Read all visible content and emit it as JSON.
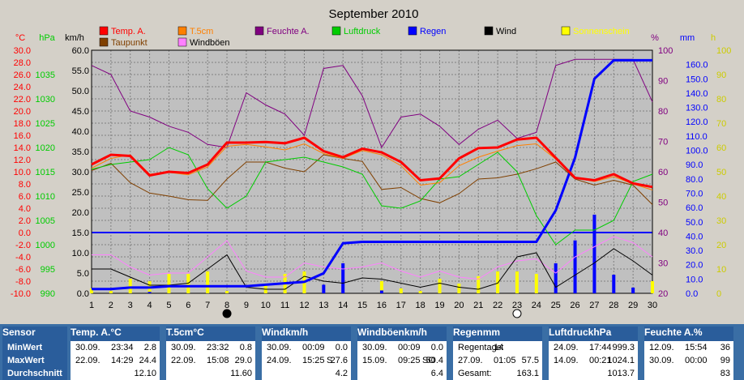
{
  "title": "September 2010",
  "axis_units": {
    "temp": "°C",
    "press": "hPa",
    "wind": "km/h",
    "hum": "%",
    "rain": "mm",
    "sun": "h"
  },
  "colors": {
    "temp": "#ff0000",
    "t5": "#ff8000",
    "hum": "#800080",
    "press": "#00cc00",
    "rain": "#0000ff",
    "wind": "#000000",
    "sun": "#ffff00",
    "dew": "#804000",
    "gust": "#ff80ff"
  },
  "chart_data": {
    "type": "line",
    "title": "September 2010",
    "x": [
      1,
      2,
      3,
      4,
      5,
      6,
      7,
      8,
      9,
      10,
      11,
      12,
      13,
      14,
      15,
      16,
      17,
      18,
      19,
      20,
      21,
      22,
      23,
      24,
      25,
      26,
      27,
      28,
      29,
      30
    ],
    "axes": {
      "temp": {
        "label": "°C",
        "ylim": [
          -10,
          30
        ],
        "ticks": [
          "30.0",
          "28.0",
          "26.0",
          "24.0",
          "22.0",
          "20.0",
          "18.0",
          "16.0",
          "14.0",
          "12.0",
          "10.0",
          "8.0",
          "6.0",
          "4.0",
          "2.0",
          "0.0",
          "-2.0",
          "-4.0",
          "-6.0",
          "-8.0",
          "-10.0"
        ]
      },
      "press": {
        "label": "hPa",
        "ylim": [
          990,
          1040
        ],
        "ticks": [
          "1035",
          "1030",
          "1025",
          "1020",
          "1015",
          "1010",
          "1005",
          "1000",
          "995",
          "990"
        ]
      },
      "wind": {
        "label": "km/h",
        "ylim": [
          0,
          60
        ],
        "ticks": [
          "60.0",
          "55.0",
          "50.0",
          "45.0",
          "40.0",
          "35.0",
          "30.0",
          "25.0",
          "20.0",
          "15.0",
          "10.0",
          "5.0",
          "0.0"
        ]
      },
      "hum": {
        "label": "%",
        "ylim": [
          20,
          100
        ],
        "ticks": [
          "100",
          "90",
          "80",
          "70",
          "60",
          "50",
          "40",
          "30",
          "20"
        ]
      },
      "rain": {
        "label": "mm",
        "ylim": [
          0,
          170
        ],
        "ticks": [
          "160.0",
          "150.0",
          "140.0",
          "130.0",
          "120.0",
          "110.0",
          "100.0",
          "90.0",
          "80.0",
          "70.0",
          "60.0",
          "50.0",
          "40.0",
          "30.0",
          "20.0",
          "10.0",
          "0.0"
        ]
      },
      "sun": {
        "label": "h",
        "ylim": [
          0,
          100
        ],
        "ticks": [
          "100",
          "90",
          "80",
          "70",
          "60",
          "50",
          "40",
          "30",
          "20",
          "10",
          "0"
        ]
      }
    },
    "legend": [
      {
        "name": "Temp. A.",
        "color": "#ff0000"
      },
      {
        "name": "T.5cm",
        "color": "#ff8000"
      },
      {
        "name": "Feuchte A.",
        "color": "#800080"
      },
      {
        "name": "Luftdruck",
        "color": "#00cc00"
      },
      {
        "name": "Regen",
        "color": "#0000ff"
      },
      {
        "name": "Wind",
        "color": "#000000"
      },
      {
        "name": "Sonnenschein",
        "color": "#ffff00"
      },
      {
        "name": "Taupunkt",
        "color": "#804000"
      },
      {
        "name": "Windböen",
        "color": "#ff80ff"
      }
    ],
    "series": [
      {
        "name": "Temp. A.",
        "axis": "temp",
        "values": [
          11.2,
          12.8,
          12.6,
          9.4,
          10.0,
          9.8,
          11.2,
          14.8,
          14.8,
          14.9,
          14.7,
          15.6,
          13.4,
          12.4,
          13.8,
          13.2,
          11.6,
          8.6,
          8.9,
          12.2,
          13.9,
          14.0,
          15.3,
          15.6,
          12.3,
          9.0,
          8.6,
          9.6,
          8.1,
          7.5
        ]
      },
      {
        "name": "T.5cm",
        "axis": "temp",
        "values": [
          10.6,
          12.2,
          12.8,
          9.6,
          9.9,
          9.5,
          10.8,
          14.2,
          14.5,
          14.1,
          13.6,
          14.6,
          13.0,
          12.2,
          13.5,
          12.8,
          11.0,
          7.8,
          8.2,
          11.0,
          12.4,
          13.4,
          14.3,
          14.6,
          12.1,
          9.0,
          8.4,
          9.2,
          8.0,
          7.0
        ]
      },
      {
        "name": "Taupunkt",
        "axis": "temp",
        "values": [
          10.2,
          11.4,
          8.2,
          6.5,
          6.0,
          5.4,
          5.3,
          8.8,
          11.6,
          11.6,
          10.6,
          10.0,
          12.8,
          12.2,
          11.7,
          7.1,
          7.4,
          5.6,
          4.9,
          6.4,
          8.8,
          9.0,
          9.6,
          10.5,
          11.6,
          8.8,
          7.8,
          8.6,
          7.8,
          4.6
        ]
      },
      {
        "name": "Feuchte A.",
        "axis": "hum",
        "values": [
          95,
          92,
          80,
          78,
          75,
          73,
          69,
          68,
          86,
          82,
          79,
          72,
          94,
          95,
          85,
          68,
          78,
          79,
          75,
          69,
          74,
          77,
          71,
          73,
          95,
          97,
          97,
          97,
          97,
          83
        ]
      },
      {
        "name": "Luftdruck",
        "axis": "press",
        "values": [
          1015.5,
          1016.5,
          1017.0,
          1017.5,
          1020.0,
          1018.5,
          1011.5,
          1007.5,
          1010.0,
          1017.0,
          1017.5,
          1018.0,
          1017.0,
          1016.0,
          1014.5,
          1008.0,
          1007.5,
          1009.0,
          1013.5,
          1014.0,
          1016.5,
          1019.0,
          1015.0,
          1006.0,
          1000.0,
          1003.0,
          1003.0,
          1005.0,
          1013.0,
          1014.5
        ]
      },
      {
        "name": "Regen",
        "axis": "rain",
        "values": [
          3,
          3,
          4,
          4,
          5,
          5,
          5,
          5,
          5,
          6,
          7,
          8,
          14,
          35,
          36,
          36,
          36,
          36,
          36,
          36,
          36,
          36,
          36,
          36,
          58,
          95,
          150,
          163,
          163,
          163
        ]
      },
      {
        "name": "Wind",
        "axis": "wind",
        "values": [
          6.0,
          6.0,
          4.0,
          2.0,
          2.0,
          2.5,
          6.0,
          9.5,
          1.5,
          1.0,
          1.0,
          4.2,
          3.0,
          2.5,
          3.8,
          3.5,
          2.5,
          1.5,
          2.5,
          1.5,
          1.0,
          2.5,
          9.0,
          10.0,
          1.5,
          4.5,
          7.5,
          11.0,
          8.0,
          4.5
        ]
      },
      {
        "name": "Windböen",
        "axis": "wind",
        "values": [
          9.5,
          9.5,
          6.5,
          4.5,
          5.0,
          5.0,
          9.0,
          13.0,
          5.5,
          4.0,
          4.0,
          7.5,
          6.5,
          6.0,
          6.5,
          7.5,
          5.5,
          4.0,
          5.5,
          4.0,
          3.5,
          6.5,
          8.0,
          8.5,
          5.0,
          9.0,
          11.5,
          14.0,
          12.5,
          9.0
        ]
      }
    ],
    "bars": [
      {
        "name": "Sonnenschein",
        "axis": "sun",
        "values": [
          2,
          1,
          6,
          5,
          8,
          8,
          9,
          1,
          0,
          4,
          8,
          9,
          0,
          0,
          0,
          5,
          2,
          1,
          6,
          4,
          7,
          9,
          9,
          8,
          0,
          0,
          0,
          0,
          0,
          5
        ]
      },
      {
        "name": "Regen (Tag)",
        "axis": "rain",
        "values": [
          0,
          0,
          0,
          1,
          0,
          0,
          0,
          0,
          0,
          0,
          0,
          0,
          6,
          21,
          0,
          2,
          0,
          0,
          0,
          0,
          0,
          0,
          0,
          0,
          21,
          37,
          55,
          13,
          4,
          0
        ]
      }
    ],
    "markers": [
      {
        "day": 8,
        "label": "new-moon"
      },
      {
        "day": 23,
        "label": "full-moon"
      }
    ]
  },
  "table": {
    "row_labels": [
      "Sensor",
      "MinWert",
      "MaxWert",
      "Durchschnitt"
    ],
    "columns": [
      {
        "title": "Temp. A.",
        "unit": "°C",
        "min": {
          "date": "30.09.",
          "time": "23:34",
          "value": "2.8"
        },
        "max": {
          "date": "22.09.",
          "time": "14:29",
          "value": "24.4"
        },
        "avg": "12.10"
      },
      {
        "title": "T.5cm",
        "unit": "°C",
        "min": {
          "date": "30.09.",
          "time": "23:32",
          "value": "0.8"
        },
        "max": {
          "date": "22.09.",
          "time": "15:08",
          "value": "29.0"
        },
        "avg": "11.60"
      },
      {
        "title": "Wind",
        "unit": "km/h",
        "min": {
          "date": "30.09.",
          "time": "00:09",
          "value": "0.0"
        },
        "max": {
          "date": "24.09.",
          "time": "15:25",
          "extra": "S",
          "value": "27.6"
        },
        "avg": "4.2"
      },
      {
        "title": "Windböen",
        "unit": "km/h",
        "min": {
          "date": "30.09.",
          "time": "00:09",
          "value": "0.0"
        },
        "max": {
          "date": "15.09.",
          "time": "09:25",
          "extra": "SO",
          "value": "50.4"
        },
        "avg": "6.4"
      },
      {
        "title": "Regen",
        "unit": "mm",
        "min": {
          "date": "Regentage:",
          "time": "14",
          "value": ""
        },
        "max": {
          "date": "27.09.",
          "time": "01:05",
          "value": "57.5"
        },
        "avg_label": "Gesamt:",
        "avg": "163.1"
      },
      {
        "title": "Luftdruck",
        "unit": "hPa",
        "min": {
          "date": "24.09.",
          "time": "17:44",
          "value": "999.3"
        },
        "max": {
          "date": "14.09.",
          "time": "00:21",
          "value": "1024.1"
        },
        "avg": "1013.7"
      },
      {
        "title": "Feuchte A.",
        "unit": "%",
        "min": {
          "date": "12.09.",
          "time": "15:54",
          "value": "36"
        },
        "max": {
          "date": "30.09.",
          "time": "00:00",
          "value": "99"
        },
        "avg": "83"
      }
    ]
  }
}
